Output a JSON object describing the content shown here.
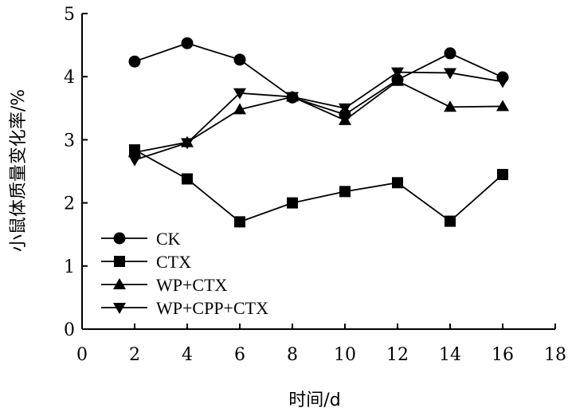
{
  "chart_data": {
    "type": "line",
    "xlabel": "时间/d",
    "ylabel": "小鼠体质量变化率/%",
    "xlim": [
      0,
      18
    ],
    "ylim": [
      0,
      5
    ],
    "xticks": [
      0,
      2,
      4,
      6,
      8,
      10,
      12,
      14,
      16,
      18
    ],
    "yticks": [
      0,
      1,
      2,
      3,
      4,
      5
    ],
    "grid": false,
    "legend_position": "lower-left",
    "x": [
      2,
      4,
      6,
      8,
      10,
      12,
      14,
      16
    ],
    "series": [
      {
        "name": "CK",
        "marker": "circle",
        "values": [
          4.24,
          4.53,
          4.27,
          3.67,
          3.4,
          3.95,
          4.37,
          3.99
        ]
      },
      {
        "name": "CTX",
        "marker": "square",
        "values": [
          2.84,
          2.38,
          1.7,
          2.0,
          2.18,
          2.32,
          1.71,
          2.45
        ]
      },
      {
        "name": "WP+CTX",
        "marker": "triangle-up",
        "values": [
          2.8,
          2.96,
          3.48,
          3.68,
          3.31,
          3.93,
          3.52,
          3.53
        ]
      },
      {
        "name": "WP+CPP+CTX",
        "marker": "triangle-down",
        "values": [
          2.68,
          2.95,
          3.74,
          3.68,
          3.5,
          4.07,
          4.06,
          3.92
        ]
      }
    ]
  }
}
